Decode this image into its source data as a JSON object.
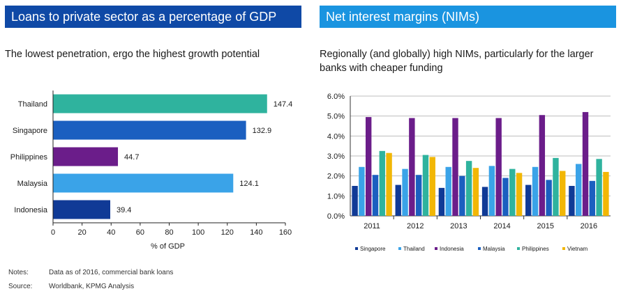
{
  "left_panel": {
    "header": "Loans to private sector as a percentage of GDP",
    "subtitle": "The lowest penetration, ergo the highest growth potential"
  },
  "right_panel": {
    "header": "Net interest margins (NIMs)",
    "subtitle": "Regionally (and globally) high NIMs, particularly for the larger banks with cheaper funding"
  },
  "notes": {
    "notes_label": "Notes:",
    "notes_text": "Data as of 2016, commercial bank loans",
    "source_label": "Source:",
    "source_text": "Worldbank, KPMG Analysis"
  },
  "chart_data": [
    {
      "type": "bar",
      "orientation": "horizontal",
      "categories": [
        "Thailand",
        "Singapore",
        "Philippines",
        "Malaysia",
        "Indonesia"
      ],
      "values": [
        147.4,
        132.9,
        44.7,
        124.1,
        39.4
      ],
      "value_labels": [
        "147.4",
        "132.9",
        "44.7",
        "124.1",
        "39.4"
      ],
      "colors": [
        "#2fb39e",
        "#1b5fc0",
        "#6b1d8a",
        "#3aa3e8",
        "#103a96"
      ],
      "xlabel": "% of GDP",
      "xlim": [
        0,
        160
      ],
      "xticks": [
        0,
        20,
        40,
        60,
        80,
        100,
        120,
        140,
        160
      ],
      "grid": false
    },
    {
      "type": "bar",
      "orientation": "vertical",
      "categories": [
        "2011",
        "2012",
        "2013",
        "2014",
        "2015",
        "2016"
      ],
      "series": [
        {
          "name": "Singapore",
          "color": "#103a96",
          "values": [
            1.5,
            1.55,
            1.4,
            1.45,
            1.55,
            1.5
          ]
        },
        {
          "name": "Thailand",
          "color": "#3aa3e8",
          "values": [
            2.45,
            2.35,
            2.45,
            2.5,
            2.45,
            2.6
          ]
        },
        {
          "name": "Indonesia",
          "color": "#6b1d8a",
          "values": [
            4.95,
            4.9,
            4.9,
            4.9,
            5.05,
            5.2
          ]
        },
        {
          "name": "Malaysia",
          "color": "#1b5fc0",
          "values": [
            2.05,
            2.05,
            2.0,
            1.9,
            1.8,
            1.75
          ]
        },
        {
          "name": "Philippines",
          "color": "#2fb39e",
          "values": [
            3.25,
            3.05,
            2.75,
            2.35,
            2.9,
            2.85
          ]
        },
        {
          "name": "Vietnam",
          "color": "#f2b705",
          "values": [
            3.15,
            2.95,
            2.4,
            2.15,
            2.25,
            2.2
          ]
        }
      ],
      "yticks": [
        "0.0%",
        "1.0%",
        "2.0%",
        "3.0%",
        "4.0%",
        "5.0%",
        "6.0%"
      ],
      "ylim": [
        0,
        6
      ],
      "grid": true,
      "legend": "bottom"
    }
  ]
}
